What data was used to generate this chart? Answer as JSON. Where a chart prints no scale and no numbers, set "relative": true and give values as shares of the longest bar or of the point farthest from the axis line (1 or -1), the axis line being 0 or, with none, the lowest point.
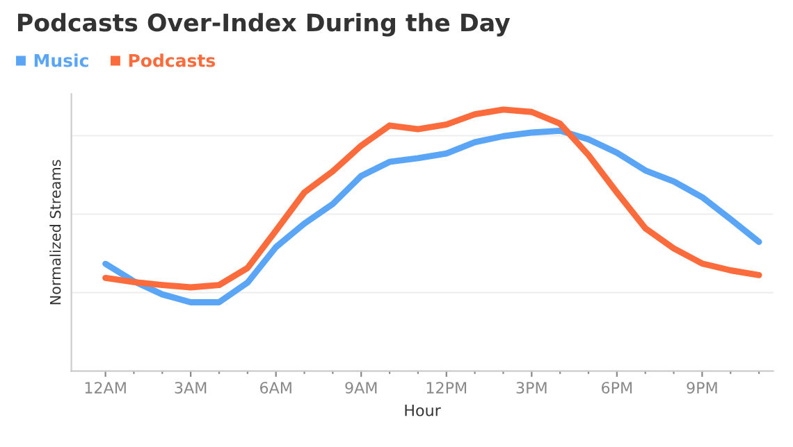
{
  "chart_data": {
    "type": "line",
    "title": "Podcasts Over-Index During the Day",
    "xlabel": "Hour",
    "ylabel": "Normalized Streams",
    "relative": true,
    "grid": "y",
    "legend": "top left",
    "categories": [
      "12AM",
      null,
      null,
      "3AM",
      null,
      null,
      "6AM",
      null,
      null,
      "9AM",
      null,
      null,
      "12PM",
      null,
      null,
      "3PM",
      null,
      null,
      "6PM",
      null,
      null,
      "9PM",
      null,
      null
    ],
    "series": [
      {
        "name": "Music",
        "color": "#5aa5f5",
        "values": [
          0.41,
          0.343,
          0.293,
          0.263,
          0.263,
          0.338,
          0.474,
          0.564,
          0.639,
          0.746,
          0.8,
          0.814,
          0.832,
          0.875,
          0.898,
          0.912,
          0.919,
          0.886,
          0.835,
          0.767,
          0.725,
          0.665,
          0.581,
          0.494
        ]
      },
      {
        "name": "Podcasts",
        "color": "#fb6b3c",
        "values": [
          0.356,
          0.34,
          0.329,
          0.32,
          0.329,
          0.394,
          0.537,
          0.683,
          0.764,
          0.862,
          0.939,
          0.925,
          0.943,
          0.982,
          1.0,
          0.991,
          0.946,
          0.826,
          0.683,
          0.546,
          0.469,
          0.411,
          0.385,
          0.367
        ]
      }
    ]
  }
}
